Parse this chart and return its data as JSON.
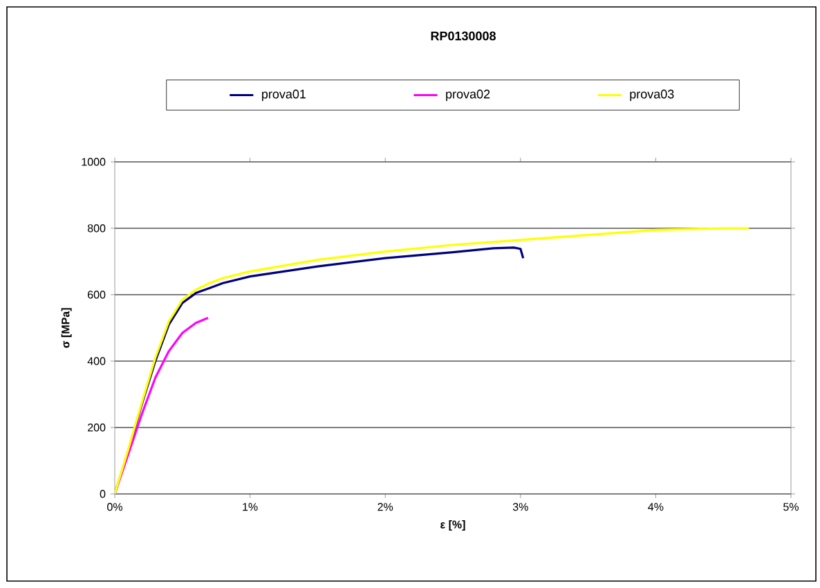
{
  "chart_data": {
    "type": "line",
    "title": "RP0130008",
    "xlabel": "ε [%]",
    "ylabel": "σ [MPa]",
    "xlim": [
      0,
      5
    ],
    "ylim": [
      0,
      1000
    ],
    "xticks": [
      {
        "value": 0,
        "label": "0%"
      },
      {
        "value": 1,
        "label": "1%"
      },
      {
        "value": 2,
        "label": "2%"
      },
      {
        "value": 3,
        "label": "3%"
      },
      {
        "value": 4,
        "label": "4%"
      },
      {
        "value": 5,
        "label": "5%"
      }
    ],
    "yticks": [
      0,
      200,
      400,
      600,
      800,
      1000
    ],
    "grid": "y",
    "legend": "top",
    "marker": "none",
    "line_style": "solid",
    "series": [
      {
        "name": "prova01",
        "color": "#000080",
        "x": [
          0,
          0.1,
          0.2,
          0.3,
          0.4,
          0.5,
          0.6,
          0.7,
          0.8,
          1.0,
          1.5,
          2.0,
          2.5,
          2.8,
          2.95,
          3.0,
          3.02
        ],
        "values": [
          0,
          130,
          270,
          400,
          510,
          575,
          605,
          620,
          635,
          655,
          685,
          710,
          728,
          740,
          742,
          738,
          710
        ]
      },
      {
        "name": "prova02",
        "color": "#ff00ff",
        "x": [
          0,
          0.1,
          0.2,
          0.3,
          0.4,
          0.5,
          0.6,
          0.69
        ],
        "values": [
          0,
          120,
          240,
          350,
          430,
          485,
          515,
          530
        ]
      },
      {
        "name": "prova03",
        "color": "#ffff00",
        "x": [
          0,
          0.1,
          0.2,
          0.3,
          0.4,
          0.5,
          0.6,
          0.7,
          0.8,
          1.0,
          1.5,
          2.0,
          2.5,
          3.0,
          3.5,
          4.0,
          4.5,
          4.69
        ],
        "values": [
          0,
          135,
          275,
          410,
          520,
          585,
          615,
          635,
          650,
          670,
          705,
          730,
          750,
          765,
          780,
          795,
          800,
          800
        ]
      }
    ]
  }
}
